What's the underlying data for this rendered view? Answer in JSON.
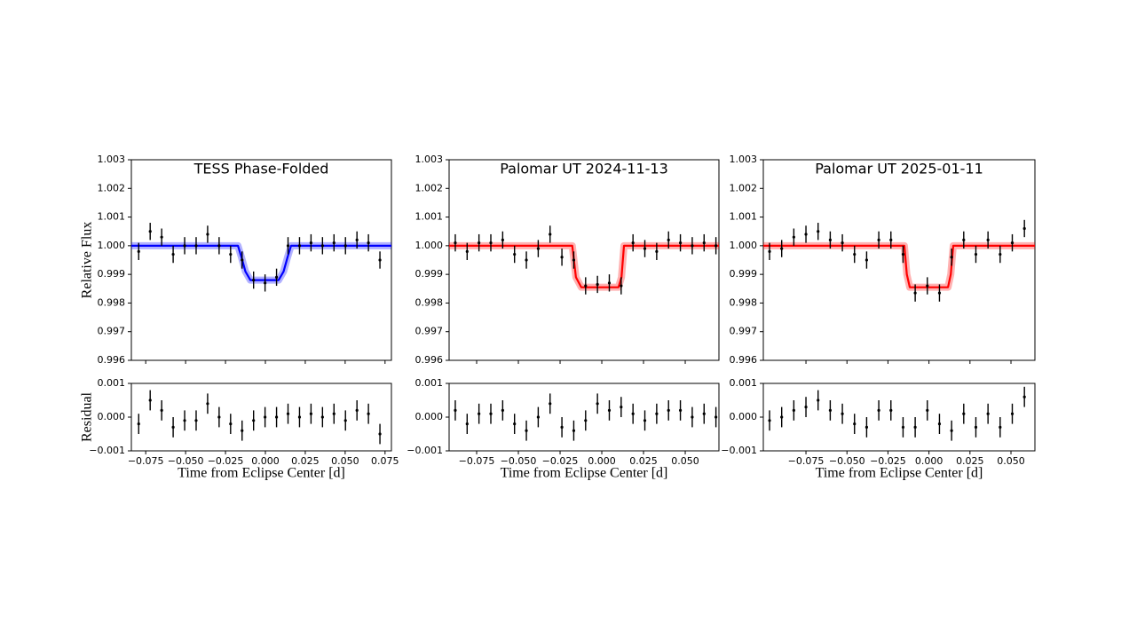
{
  "chart_data": [
    {
      "type": "errorbar",
      "title": "TESS Phase-Folded",
      "ylabel": "Relative Flux",
      "xlabel": "Time from Eclipse Center [d]",
      "xlim": [
        -0.084,
        0.079
      ],
      "xticks": [
        {
          "value": -0.075,
          "label": "−0.075"
        },
        {
          "value": -0.05,
          "label": "−0.050"
        },
        {
          "value": -0.025,
          "label": "−0.025"
        },
        {
          "value": 0,
          "label": "0.000"
        },
        0.025,
        {
          "value": 0.05,
          "label": "0.050"
        },
        0.075
      ],
      "ylim": [
        0.996,
        1.003
      ],
      "yticks": [
        0.996,
        0.997,
        0.998,
        0.999,
        {
          "value": 1,
          "label": "1.000"
        },
        1.001,
        1.002,
        1.003
      ],
      "color": "#000000",
      "yerr": 0.0003,
      "x": [
        -0.0794,
        -0.0722,
        -0.065,
        -0.0578,
        -0.0506,
        -0.0434,
        -0.0362,
        -0.029,
        -0.0218,
        -0.0146,
        -0.0074,
        -0.0002,
        0.007,
        0.0142,
        0.0214,
        0.0286,
        0.0358,
        0.043,
        0.0502,
        0.0574,
        0.0646,
        0.0718
      ],
      "values": [
        0.9998,
        1.0005,
        1.0003,
        0.9997,
        1.0,
        1.0,
        1.0004,
        1.0,
        0.9997,
        0.9995,
        0.9988,
        0.9987,
        0.9989,
        1.0,
        1.0,
        1.0001,
        1.0,
        1.0001,
        1.0,
        1.0002,
        1.0001,
        0.9995
      ],
      "model": {
        "color": "#0000ff",
        "x": [
          -0.084,
          -0.0172,
          -0.015,
          -0.0125,
          -0.0094,
          0.0083,
          0.0114,
          0.0139,
          0.0161,
          0.079
        ],
        "values": [
          1,
          1,
          0.9996,
          0.9991,
          0.9988,
          0.9988,
          0.9991,
          0.9996,
          1,
          1
        ]
      },
      "residual": {
        "ylabel": "Residual",
        "ylim": [
          -0.001,
          0.001
        ],
        "yticks": [
          {
            "value": -0.001,
            "label": "−0.001"
          },
          {
            "value": 0,
            "label": "0.000"
          },
          0.001
        ],
        "values": [
          -0.0002,
          0.0005,
          0.0002,
          -0.0003,
          -0.0001,
          -0.0001,
          0.0004,
          0.0,
          -0.0002,
          -0.0004,
          -0.0001,
          0.0,
          0.0,
          0.0001,
          0.0,
          0.0001,
          0.0,
          0.0001,
          -0.0001,
          0.0002,
          0.0001,
          -0.0005
        ]
      }
    },
    {
      "type": "errorbar",
      "title": "Palomar UT 2024-11-13",
      "xlabel": "Time from Eclipse Center [d]",
      "xlim": [
        -0.0915,
        0.0702
      ],
      "xticks": [
        {
          "value": -0.075,
          "label": "−0.075"
        },
        {
          "value": -0.05,
          "label": "−0.050"
        },
        {
          "value": -0.025,
          "label": "−0.025"
        },
        {
          "value": 0,
          "label": "0.000"
        },
        0.025,
        {
          "value": 0.05,
          "label": "0.050"
        }
      ],
      "ylim": [
        0.996,
        1.003
      ],
      "yticks": [
        0.996,
        0.997,
        0.998,
        0.999,
        {
          "value": 1,
          "label": "1.000"
        },
        1.001,
        1.002,
        1.003
      ],
      "color": "#000000",
      "yerr": 0.0003,
      "x": [
        -0.0878,
        -0.0807,
        -0.0736,
        -0.0665,
        -0.0594,
        -0.0523,
        -0.0452,
        -0.0381,
        -0.031,
        -0.0239,
        -0.0168,
        -0.0097,
        -0.0026,
        0.0045,
        0.0116,
        0.0187,
        0.0258,
        0.0329,
        0.04,
        0.0471,
        0.0542,
        0.0613,
        0.0684
      ],
      "values": [
        1.0001,
        0.9998,
        1.0001,
        1.0001,
        1.0002,
        0.9997,
        0.9995,
        0.9999,
        1.0004,
        0.9996,
        0.9995,
        0.9986,
        0.99865,
        0.9987,
        0.9986,
        1.0001,
        0.9999,
        0.9998,
        1.0002,
        1.0001,
        1.0,
        1.0001,
        1.0
      ],
      "model": {
        "color": "#ff0000",
        "x": [
          -0.0915,
          -0.0177,
          -0.0155,
          -0.0123,
          0.01,
          0.0118,
          0.0133,
          0.0702
        ],
        "values": [
          1,
          1,
          0.9989,
          0.99855,
          0.99855,
          0.9989,
          1,
          1
        ]
      },
      "residual": {
        "ylim": [
          -0.001,
          0.001
        ],
        "yticks": [
          {
            "value": -0.001,
            "label": "−0.001"
          },
          {
            "value": 0,
            "label": "0.000"
          },
          0.001
        ],
        "values": [
          0.0002,
          -0.0002,
          0.0001,
          0.0001,
          0.0002,
          -0.0002,
          -0.0004,
          0.0,
          0.0004,
          -0.0003,
          -0.0004,
          -0.0001,
          0.0004,
          0.0002,
          0.0003,
          0.0001,
          -0.0001,
          0.0001,
          0.0002,
          0.0002,
          0.0,
          0.0001,
          0.0
        ]
      }
    },
    {
      "type": "errorbar",
      "title": "Palomar UT 2025-01-11",
      "xlabel": "Time from Eclipse Center [d]",
      "xlim": [
        -0.101,
        0.0646
      ],
      "xticks": [
        {
          "value": -0.075,
          "label": "−0.075"
        },
        {
          "value": -0.05,
          "label": "−0.050"
        },
        {
          "value": -0.025,
          "label": "−0.025"
        },
        {
          "value": 0,
          "label": "0.000"
        },
        0.025,
        {
          "value": 0.05,
          "label": "0.050"
        }
      ],
      "ylim": [
        0.996,
        1.003
      ],
      "yticks": [
        0.996,
        0.997,
        0.998,
        0.999,
        {
          "value": 1,
          "label": "1.000"
        },
        1.001,
        1.002,
        1.003
      ],
      "color": "#000000",
      "yerr": 0.0003,
      "x": [
        -0.0972,
        -0.0898,
        -0.0824,
        -0.075,
        -0.0676,
        -0.0602,
        -0.0528,
        -0.0454,
        -0.038,
        -0.0306,
        -0.0232,
        -0.0158,
        -0.0084,
        -0.001,
        0.0064,
        0.0138,
        0.0212,
        0.0286,
        0.036,
        0.0434,
        0.0508,
        0.0582
      ],
      "values": [
        0.9998,
        0.9999,
        1.0003,
        1.0004,
        1.0005,
        1.0002,
        1.0001,
        0.9997,
        0.9995,
        1.0002,
        1.0002,
        0.9997,
        0.99835,
        0.9986,
        0.99835,
        0.9996,
        1.0002,
        0.9997,
        1.0002,
        0.9997,
        1.0001,
        1.0006
      ],
      "model": {
        "color": "#ff0000",
        "x": [
          -0.101,
          -0.015,
          -0.0135,
          -0.0117,
          0.0116,
          0.0133,
          0.0148,
          0.0646
        ],
        "values": [
          1,
          1,
          0.999,
          0.99855,
          0.99855,
          0.999,
          1,
          1
        ]
      },
      "residual": {
        "ylim": [
          -0.001,
          0.001
        ],
        "yticks": [
          {
            "value": -0.001,
            "label": "−0.001"
          },
          {
            "value": 0,
            "label": "0.000"
          },
          0.001
        ],
        "values": [
          -0.0001,
          0.0,
          0.0002,
          0.0003,
          0.0005,
          0.0002,
          0.0001,
          -0.0002,
          -0.0003,
          0.0002,
          0.0002,
          -0.0003,
          -0.0003,
          0.0002,
          -0.0002,
          -0.0004,
          0.0001,
          -0.0003,
          0.0001,
          -0.0003,
          0.0001,
          0.0006
        ]
      }
    }
  ]
}
